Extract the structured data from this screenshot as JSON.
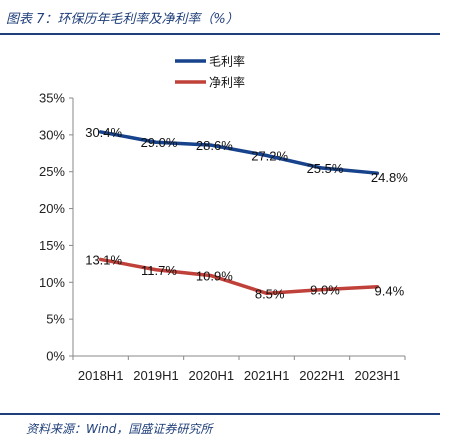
{
  "title": "图表 7：环保历年毛利率及净利率（%）",
  "source": "资料来源：Wind，国盛证券研究所",
  "colors": {
    "gross": "#17428c",
    "net": "#c0403a",
    "brand": "#1f3f7a"
  },
  "chart_data": {
    "type": "line",
    "categories": [
      "2018H1",
      "2019H1",
      "2020H1",
      "2021H1",
      "2022H1",
      "2023H1"
    ],
    "series": [
      {
        "name": "毛利率",
        "values": [
          30.4,
          29.0,
          28.6,
          27.2,
          25.5,
          24.8
        ],
        "labels": [
          "30.4%",
          "29.0%",
          "28.6%",
          "27.2%",
          "25.5%",
          "24.8%"
        ]
      },
      {
        "name": "净利率",
        "values": [
          13.1,
          11.7,
          10.9,
          8.5,
          9.0,
          9.4
        ],
        "labels": [
          "13.1%",
          "11.7%",
          "10.9%",
          "8.5%",
          "9.0%",
          "9.4%"
        ]
      }
    ],
    "ylim": [
      0,
      35
    ],
    "yticks": [
      "0%",
      "5%",
      "10%",
      "15%",
      "20%",
      "25%",
      "30%",
      "35%"
    ],
    "legend_position": "top-center",
    "grid": false
  }
}
